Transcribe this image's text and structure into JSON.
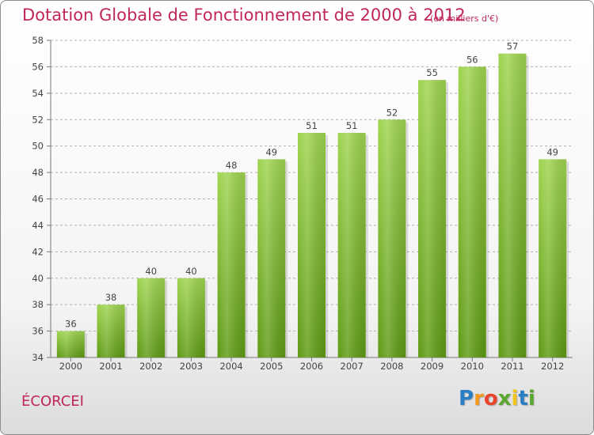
{
  "header": {
    "title": "Dotation Globale de Fonctionnement de 2000 à 2012",
    "unit": "(en milliers d'€)"
  },
  "footer": {
    "commune": "ÉCORCEI",
    "brand": "Proxiti"
  },
  "colors": {
    "accent": "#c0265a",
    "bar_top": "#9fd44f",
    "bar_bottom": "#5e9a14",
    "grid": "#b0b0b0"
  },
  "chart_data": {
    "type": "bar",
    "title": "Dotation Globale de Fonctionnement de 2000 à 2012",
    "subtitle": "(en milliers d'€)",
    "xlabel": "",
    "ylabel": "",
    "categories": [
      "2000",
      "2001",
      "2002",
      "2003",
      "2004",
      "2005",
      "2006",
      "2007",
      "2008",
      "2009",
      "2010",
      "2011",
      "2012"
    ],
    "values": [
      36,
      38,
      40,
      40,
      48,
      49,
      51,
      51,
      52,
      55,
      56,
      57,
      49
    ],
    "ylim": [
      34,
      58
    ],
    "yticks": [
      34,
      36,
      38,
      40,
      42,
      44,
      46,
      48,
      50,
      52,
      54,
      56,
      58
    ],
    "grid": true,
    "data_labels": true
  }
}
